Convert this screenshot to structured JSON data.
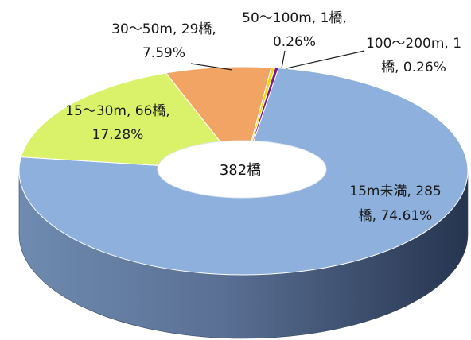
{
  "chart_data": {
    "type": "pie",
    "style": "3d-donut",
    "center_label": "382橋",
    "slices": [
      {
        "name": "15m未満",
        "count": 285,
        "percent": 74.61,
        "color": "#8db0dc",
        "label_lines": [
          "15m未満, 285",
          "橋, 74.61%"
        ]
      },
      {
        "name": "15～30m",
        "count": 66,
        "percent": 17.28,
        "color": "#d9f26a",
        "label_lines": [
          "15～30m, 66橋,",
          "17.28%"
        ]
      },
      {
        "name": "30～50m",
        "count": 29,
        "percent": 7.59,
        "color": "#f2a464",
        "label_lines": [
          "30～50m, 29橋,",
          "7.59%"
        ]
      },
      {
        "name": "50～100m",
        "count": 1,
        "percent": 0.26,
        "color": "#f5d800",
        "label_lines": [
          "50～100m, 1橋,",
          "0.26%"
        ]
      },
      {
        "name": "100～200m",
        "count": 1,
        "percent": 0.26,
        "color": "#7a1a8c",
        "label_lines": [
          "100～200m, 1",
          "橋, 0.26%"
        ]
      }
    ]
  }
}
